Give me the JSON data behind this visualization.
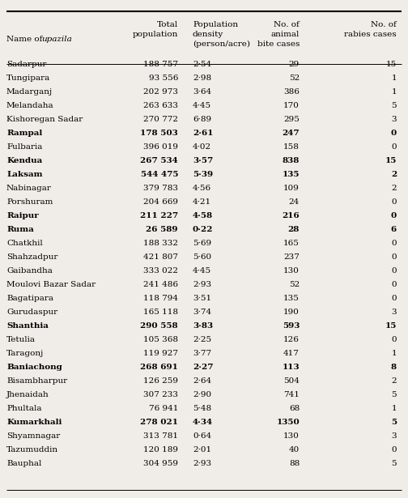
{
  "rows": [
    [
      "Sadarpur",
      "188 757",
      "2·54",
      "29",
      "15",
      false
    ],
    [
      "Tungipara",
      "93 556",
      "2·98",
      "52",
      "1",
      false
    ],
    [
      "Madarganj",
      "202 973",
      "3·64",
      "386",
      "1",
      false
    ],
    [
      "Melandaha",
      "263 633",
      "4·45",
      "170",
      "5",
      false
    ],
    [
      "Kishoregan Sadar",
      "270 772",
      "6·89",
      "295",
      "3",
      false
    ],
    [
      "Rampal",
      "178 503",
      "2·61",
      "247",
      "0",
      true
    ],
    [
      "Fulbaria",
      "396 019",
      "4·02",
      "158",
      "0",
      false
    ],
    [
      "Kendua",
      "267 534",
      "3·57",
      "838",
      "15",
      false
    ],
    [
      "Laksam",
      "544 475",
      "5·39",
      "135",
      "2",
      true
    ],
    [
      "Nabinagar",
      "379 783",
      "4·56",
      "109",
      "2",
      false
    ],
    [
      "Porshuram",
      "204 669",
      "4·21",
      "24",
      "0",
      false
    ],
    [
      "Raipur",
      "211 227",
      "4·58",
      "216",
      "0",
      true
    ],
    [
      "Ruma",
      "26 589",
      "0·22",
      "28",
      "6",
      true
    ],
    [
      "Chatkhil",
      "188 332",
      "5·69",
      "165",
      "0",
      false
    ],
    [
      "Shahzadpur",
      "421 807",
      "5·60",
      "237",
      "0",
      false
    ],
    [
      "Gaibandha",
      "333 022",
      "4·45",
      "130",
      "0",
      false
    ],
    [
      "Moulovi Bazar Sadar",
      "241 486",
      "2·93",
      "52",
      "0",
      false
    ],
    [
      "Bagatipara",
      "118 794",
      "3·51",
      "135",
      "0",
      false
    ],
    [
      "Gurudaspur",
      "165 118",
      "3·74",
      "190",
      "3",
      false
    ],
    [
      "Shanthia",
      "290 558",
      "3·83",
      "593",
      "15",
      false
    ],
    [
      "Tetulia",
      "105 368",
      "2·25",
      "126",
      "0",
      false
    ],
    [
      "Taragonj",
      "119 927",
      "3·77",
      "417",
      "1",
      false
    ],
    [
      "Baniachong",
      "268 691",
      "2·27",
      "113",
      "8",
      false
    ],
    [
      "Bisambharpur",
      "126 259",
      "2·64",
      "504",
      "2",
      false
    ],
    [
      "Jhenaidah",
      "307 233",
      "2·90",
      "741",
      "5",
      false
    ],
    [
      "Phultala",
      "76 941",
      "5·48",
      "68",
      "1",
      false
    ],
    [
      "Kumarkhali",
      "278 021",
      "4·34",
      "1350",
      "5",
      true
    ],
    [
      "Shyamnagar",
      "313 781",
      "0·64",
      "130",
      "3",
      false
    ],
    [
      "Tazumuddin",
      "120 189",
      "2·01",
      "40",
      "0",
      false
    ],
    [
      "Bauphal",
      "304 959",
      "2·93",
      "88",
      "5",
      false
    ]
  ],
  "bold_names": [
    "Rampal",
    "Laksam",
    "Raipur",
    "Ruma",
    "Shanthia",
    "Kumarkhali",
    "Kendua",
    "Baniachong"
  ],
  "col_aligns": [
    "left",
    "right",
    "left",
    "right",
    "right"
  ],
  "figsize": [
    5.04,
    6.15
  ],
  "dpi": 100,
  "font_size": 7.5,
  "header_font_size": 7.5,
  "background_color": "#f0ede8",
  "line_color": "#000000"
}
